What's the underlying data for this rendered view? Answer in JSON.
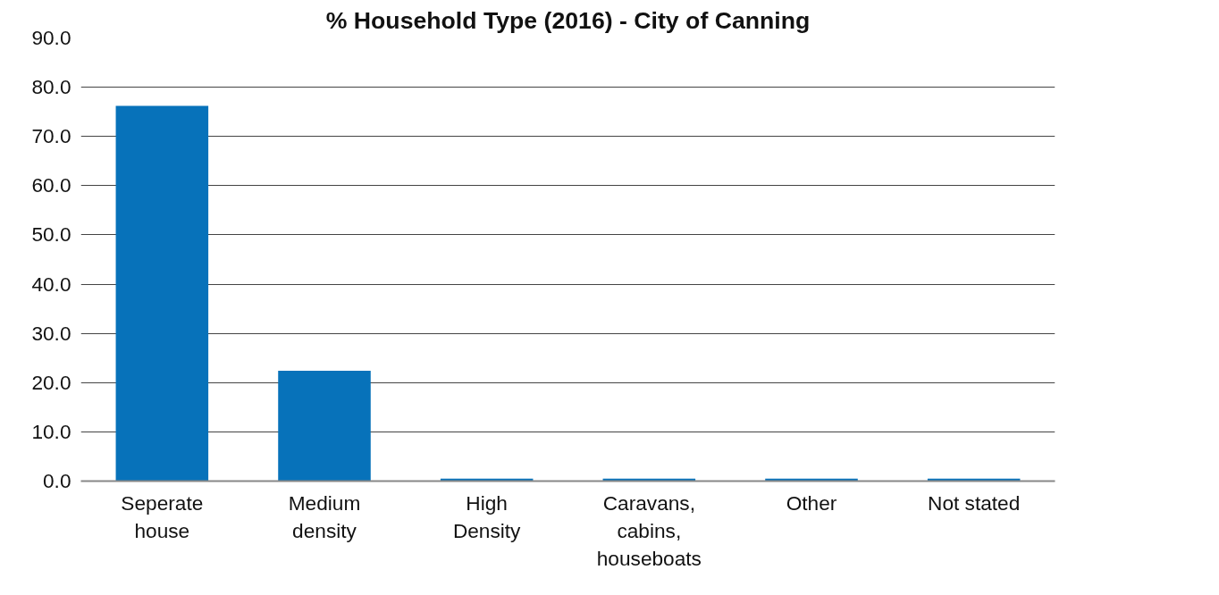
{
  "chart_data": {
    "type": "bar",
    "title": "% Household Type (2016) - City of Canning",
    "categories": [
      "Seperate house",
      "Medium density",
      "High Density",
      "Caravans, cabins, houseboats",
      "Other",
      "Not stated"
    ],
    "values": [
      76.2,
      22.4,
      0.5,
      0.5,
      0.5,
      0.5
    ],
    "color": "#0772ba",
    "ylim": [
      0,
      90
    ],
    "yticks": [
      {
        "value": 0,
        "label": "0.0"
      },
      {
        "value": 10,
        "label": "10.0"
      },
      {
        "value": 20,
        "label": "20.0"
      },
      {
        "value": 30,
        "label": "30.0"
      },
      {
        "value": 40,
        "label": "40.0"
      },
      {
        "value": 50,
        "label": "50.0"
      },
      {
        "value": 60,
        "label": "60.0"
      },
      {
        "value": 70,
        "label": "70.0"
      },
      {
        "value": 80,
        "label": "80.0"
      },
      {
        "value": 90,
        "label": "90.0"
      }
    ],
    "grid": "y"
  }
}
